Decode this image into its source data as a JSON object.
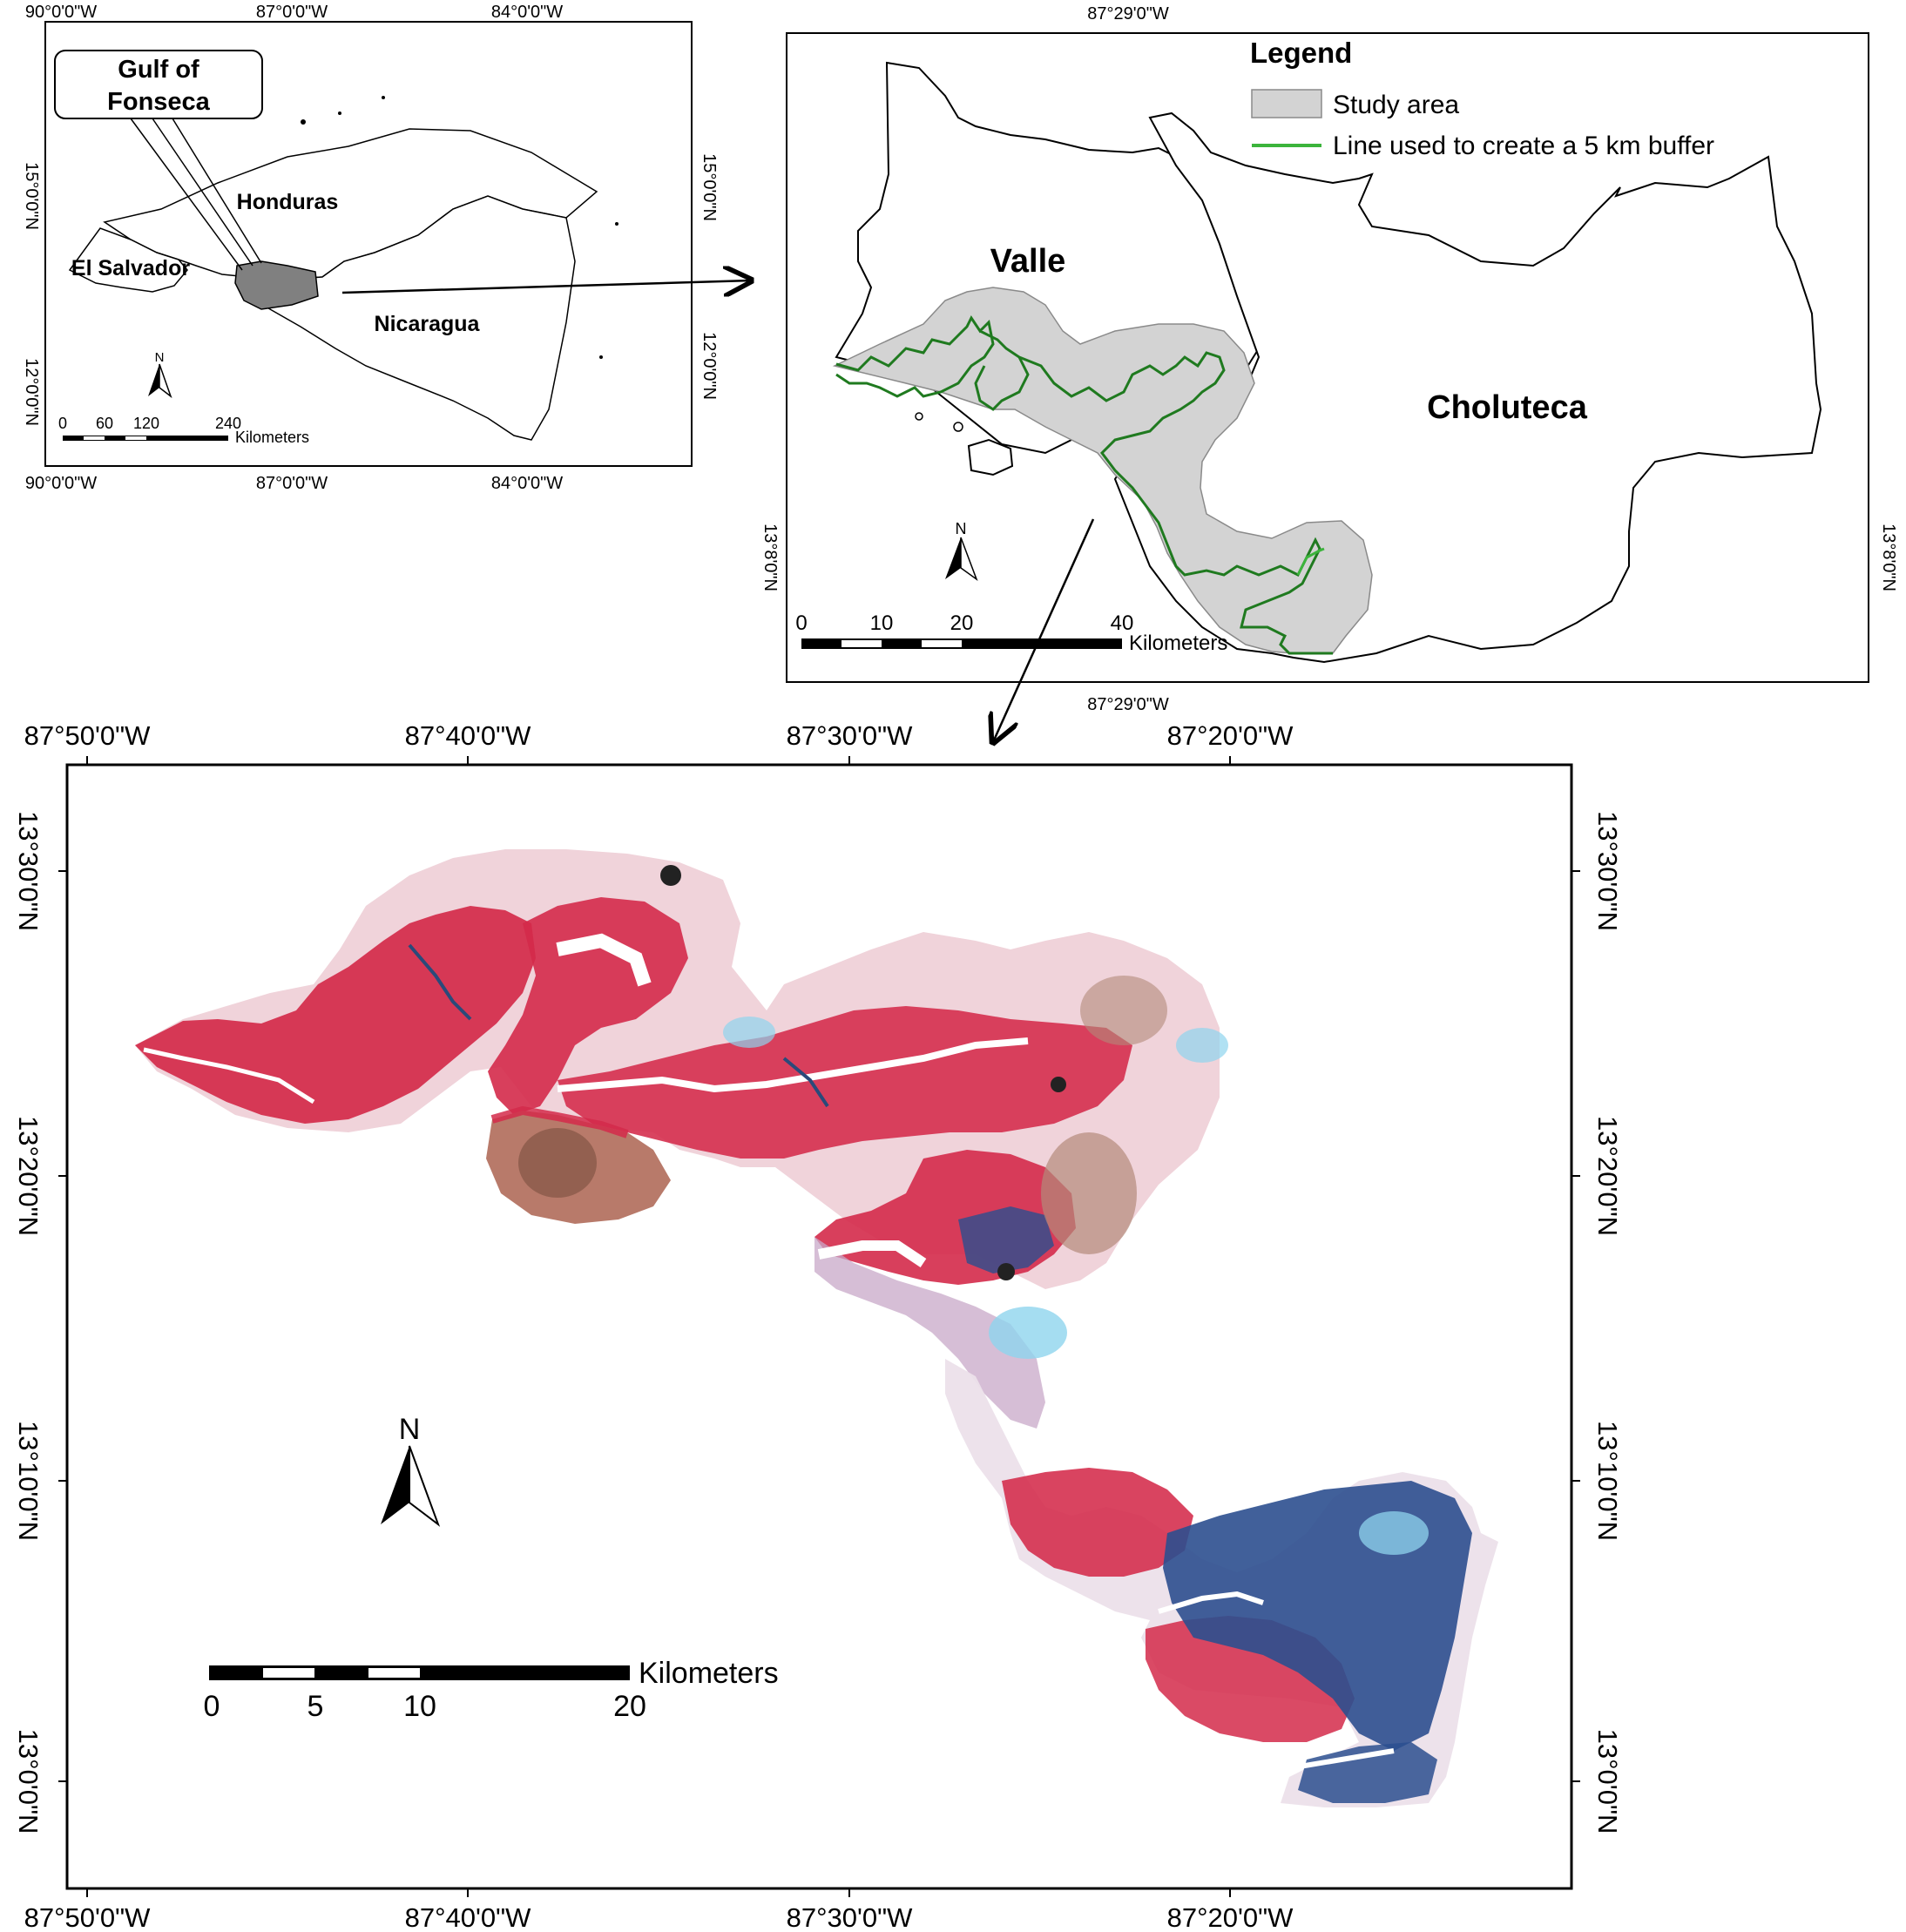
{
  "locator": {
    "top_ticks": [
      "90°0'0\"W",
      "87°0'0\"W",
      "84°0'0\"W"
    ],
    "bottom_ticks": [
      "90°0'0\"W",
      "87°0'0\"W",
      "84°0'0\"W"
    ],
    "left_ticks": [
      "15°0'0\"N",
      "12°0'0\"N"
    ],
    "right_ticks": [
      "15°0'0\"N",
      "12°0'0\"N"
    ],
    "callout_line1": "Gulf of",
    "callout_line2": "Fonseca",
    "countries": [
      "Honduras",
      "El Salvador",
      "Nicaragua"
    ],
    "north": "N",
    "scale_numbers": [
      "0",
      "60",
      "120",
      "240"
    ],
    "scale_unit": "Kilometers"
  },
  "context": {
    "top_tick": "87°29'0\"W",
    "bottom_tick": "87°29'0\"W",
    "left_tick": "13°8'0\"N",
    "right_tick": "13°8'0\"N",
    "legend_title": "Legend",
    "legend_items": [
      "Study area",
      "Line used to create a 5 km buffer"
    ],
    "departments": [
      "Valle",
      "Choluteca"
    ],
    "north": "N",
    "scale_numbers": [
      "0",
      "10",
      "20",
      "40"
    ],
    "scale_unit": "Kilometers"
  },
  "main": {
    "top_ticks": [
      "87°50'0\"W",
      "87°40'0\"W",
      "87°30'0\"W",
      "87°20'0\"W"
    ],
    "bottom_ticks": [
      "87°50'0\"W",
      "87°40'0\"W",
      "87°30'0\"W",
      "87°20'0\"W"
    ],
    "left_ticks": [
      "13°30'0\"N",
      "13°20'0\"N",
      "13°10'0\"N",
      "13°0'0\"N"
    ],
    "right_ticks": [
      "13°30'0\"N",
      "13°20'0\"N",
      "13°10'0\"N",
      "13°0'0\"N"
    ],
    "north": "N",
    "scale_numbers": [
      "0",
      "5",
      "10",
      "20"
    ],
    "scale_unit": "Kilometers"
  },
  "colors": {
    "study_area": "#d3d3d3",
    "buffer_line": "#1f7a1f",
    "mangrove": "#d42a4a",
    "water_dark": "#2a4a7a",
    "ponds": "#2c4f8f",
    "bare": "#f4d8de",
    "cyan": "#8fd4ee",
    "highlight_country": "#808080"
  }
}
